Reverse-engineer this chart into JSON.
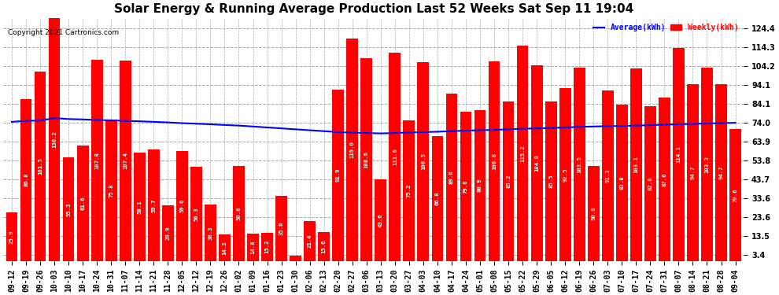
{
  "title": "Solar Energy & Running Average Production Last 52 Weeks Sat Sep 11 19:04",
  "copyright": "Copyright 2021 Cartronics.com",
  "legend_avg": "Average(kWh)",
  "legend_weekly": "Weekly(kWh)",
  "categories": [
    "09-12",
    "09-19",
    "09-26",
    "10-03",
    "10-10",
    "10-17",
    "10-24",
    "10-31",
    "11-07",
    "11-14",
    "11-21",
    "11-28",
    "12-05",
    "12-12",
    "12-19",
    "12-26",
    "01-02",
    "01-09",
    "01-16",
    "01-23",
    "01-30",
    "02-06",
    "02-13",
    "02-20",
    "02-27",
    "03-06",
    "03-13",
    "03-20",
    "03-27",
    "04-03",
    "04-10",
    "04-17",
    "04-24",
    "05-01",
    "05-08",
    "05-15",
    "05-22",
    "05-29",
    "06-05",
    "06-12",
    "06-19",
    "06-26",
    "07-03",
    "07-10",
    "07-17",
    "07-24",
    "07-31",
    "08-07",
    "08-14",
    "08-21",
    "08-28",
    "09-04"
  ],
  "weekly_values": [
    25.9,
    86.8,
    101.5,
    130.2,
    55.3,
    61.6,
    107.8,
    75.8,
    107.4,
    58.1,
    59.7,
    29.9,
    59.0,
    50.3,
    30.3,
    14.3,
    50.8,
    14.8,
    15.2,
    35.0,
    3.0,
    21.4,
    15.6,
    91.9,
    119.0,
    108.6,
    43.6,
    111.6,
    75.2,
    106.5,
    66.8,
    89.6,
    79.8,
    80.9,
    106.8,
    85.2,
    115.2,
    104.8,
    85.5,
    92.5,
    103.5,
    50.8,
    91.3,
    83.8,
    103.1,
    82.8,
    87.6,
    114.1,
    94.7,
    103.3,
    94.7,
    70.6
  ],
  "running_avg": [
    74.5,
    75.0,
    75.2,
    76.5,
    76.0,
    75.8,
    75.5,
    75.3,
    75.0,
    74.8,
    74.5,
    74.2,
    73.8,
    73.5,
    73.2,
    72.8,
    72.5,
    72.0,
    71.5,
    71.0,
    70.5,
    70.0,
    69.5,
    69.0,
    68.7,
    68.5,
    68.3,
    68.5,
    68.8,
    69.0,
    69.2,
    69.5,
    69.8,
    70.0,
    70.2,
    70.5,
    70.8,
    71.0,
    71.2,
    71.5,
    71.8,
    72.0,
    72.2,
    72.3,
    72.5,
    72.7,
    73.0,
    73.2,
    73.4,
    73.6,
    73.8,
    74.0
  ],
  "bar_color": "#ff0000",
  "line_color": "#0000ff",
  "bg_color": "#ffffff",
  "label_color": "#ffffff",
  "title_color": "#000000",
  "copyright_color": "#000000",
  "grid_color": "#aaaaaa",
  "yticks": [
    3.4,
    13.5,
    23.6,
    33.6,
    43.7,
    53.8,
    63.9,
    74.0,
    84.1,
    94.1,
    104.2,
    114.3,
    124.4
  ],
  "ylim": [
    0,
    130
  ],
  "title_fontsize": 11,
  "label_fontsize": 5.2,
  "tick_fontsize": 7,
  "bar_width": 0.82
}
